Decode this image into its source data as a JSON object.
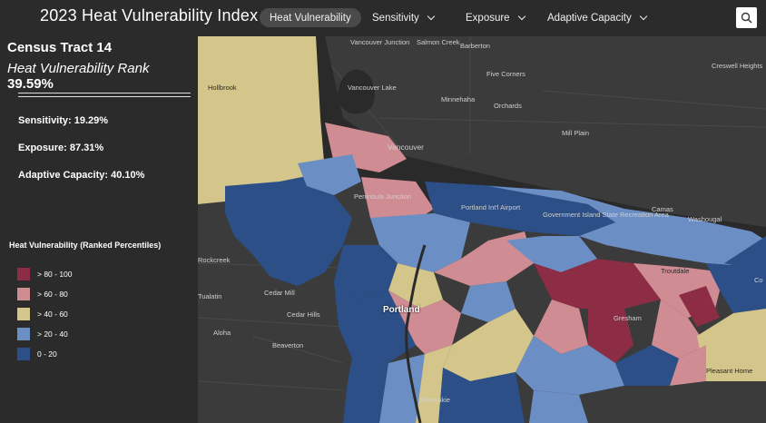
{
  "header": {
    "title": "2023 Heat Vulnerability Index",
    "nav": [
      {
        "label": "Heat Vulnerability",
        "active": true
      },
      {
        "label": "Sensitivity"
      },
      {
        "label": "Exposure"
      },
      {
        "label": "Adaptive Capacity"
      }
    ],
    "search_icon": "search-icon"
  },
  "panel": {
    "tract": "Census Tract 14",
    "rank_label": "Heat Vulnerability Rank",
    "rank_value": "39.59%",
    "stats": [
      "Sensitivity: 19.29%",
      "Exposure: 87.31%",
      "Adaptive Capacity: 40.10%"
    ],
    "legend_title": "Heat Vulnerability (Ranked Percentiles)",
    "legend": [
      {
        "label": "> 80 - 100",
        "color": "#8c2d45"
      },
      {
        "label": "> 60 - 80",
        "color": "#d08c93"
      },
      {
        "label": "> 40 - 60",
        "color": "#d4c68a"
      },
      {
        "label": "> 20 - 40",
        "color": "#6b8fc4"
      },
      {
        "label": "0 - 20",
        "color": "#2b4f86"
      }
    ]
  },
  "map": {
    "places": [
      "Vancouver Junction",
      "Salmon Creek",
      "Barberton",
      "Vancouver Lake",
      "Five Corners",
      "Minnehaha",
      "Orchards",
      "Creswell Heights",
      "Mill Plain",
      "Vancouver",
      "Hollbrook",
      "Peninsula Junction",
      "Portland Int'l Airport",
      "Government Island State Recreation Area",
      "Camas",
      "Washougal",
      "Rockcreek",
      "Troutdale",
      "Cedar Mill",
      "Tualatin",
      "Cedar Hills",
      "Portland",
      "Gresham",
      "Aloha",
      "Beaverton",
      "Pleasant Home",
      "Milwaukie",
      "Co"
    ]
  }
}
